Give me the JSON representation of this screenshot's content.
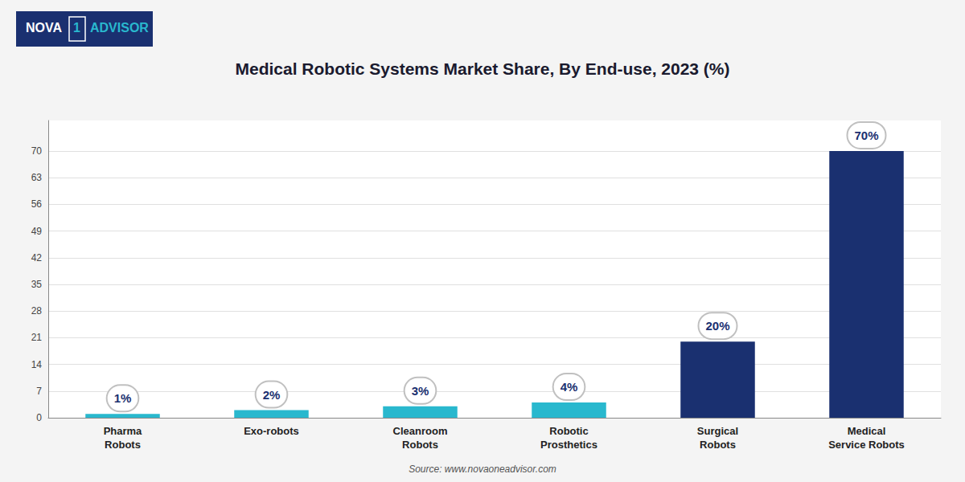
{
  "chart_data": {
    "type": "bar",
    "title": "Medical Robotic Systems Market Share, By End-use, 2023 (%)",
    "categories": [
      "Pharma\nRobots",
      "Exo-robots",
      "Cleanroom\nRobots",
      "Robotic\nProsthetics",
      "Surgical\nRobots",
      "Medical\nService Robots"
    ],
    "values": [
      1,
      2,
      3,
      4,
      20,
      70
    ],
    "value_labels": [
      "1%",
      "2%",
      "3%",
      "4%",
      "20%",
      "70%"
    ],
    "data_labels": true,
    "colors": [
      "#29b8ce",
      "#29b8ce",
      "#29b8ce",
      "#29b8ce",
      "#1a3070",
      "#1a3070"
    ],
    "ylim": [
      0,
      78
    ],
    "yticks": [
      0,
      7,
      14,
      21,
      28,
      35,
      42,
      49,
      56,
      63,
      70
    ],
    "grid": true,
    "annotations": [
      "Source: www.novaoneadvisor.com",
      "NOVA",
      "1",
      "ADVISOR"
    ]
  }
}
